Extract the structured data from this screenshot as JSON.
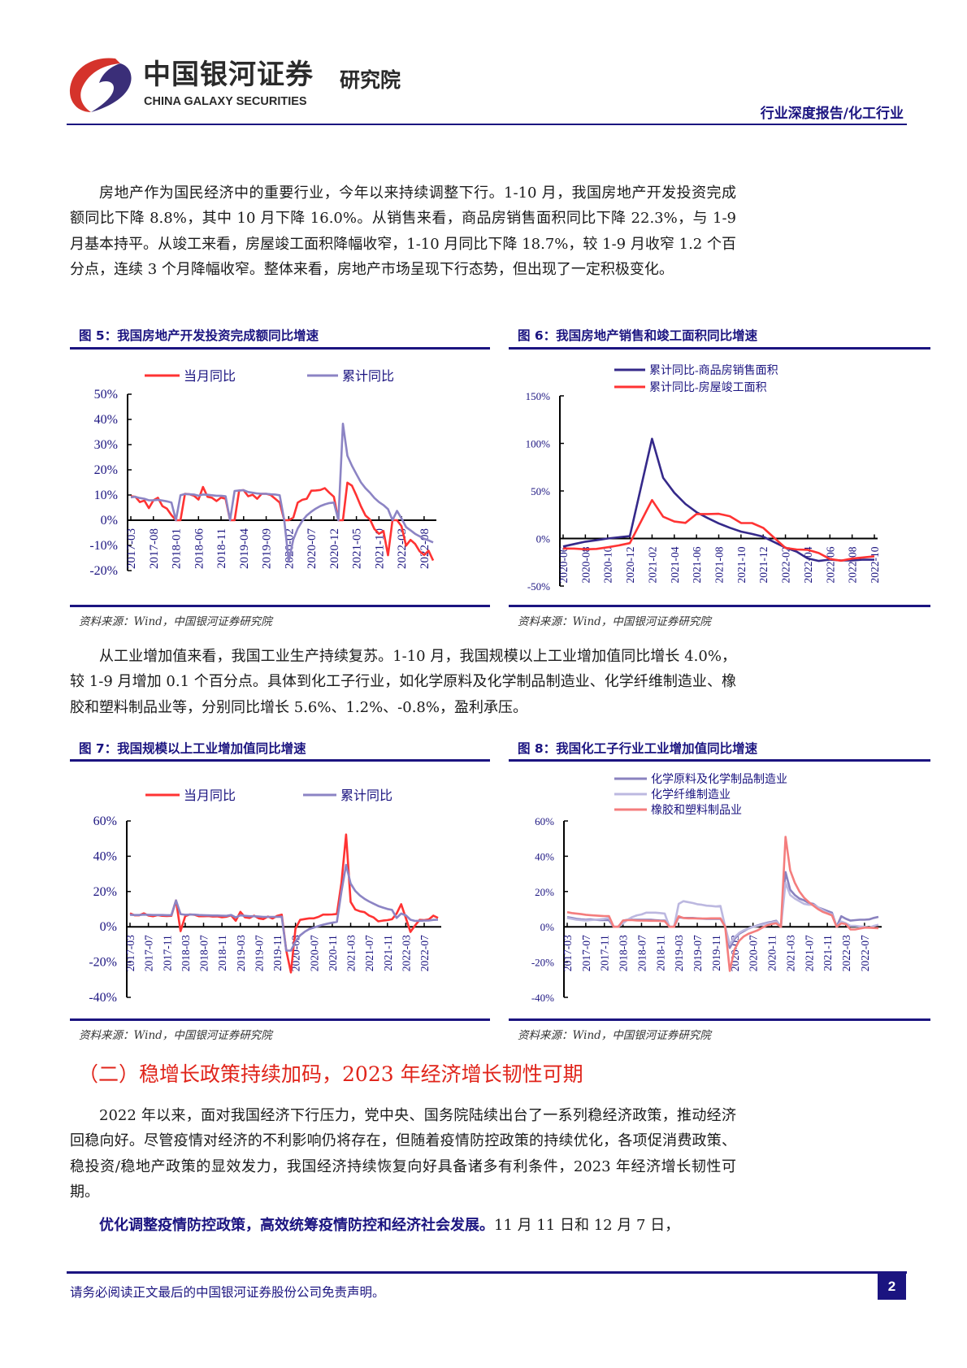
{
  "header": {
    "logo_cn": "中国银河证券",
    "logo_en": "CHINA GALAXY SECURITIES",
    "logo_sub": "研究院",
    "report_type": "行业深度报告/化工行业",
    "logo_colors": {
      "red": "#d5332b",
      "navy": "#3a2e78"
    }
  },
  "body": {
    "p1": "房地产作为国民经济中的重要行业，今年以来持续调整下行。1-10 月，我国房地产开发投资完成额同比下降 8.8%，其中 10 月下降 16.0%。从销售来看，商品房销售面积同比下降 22.3%，与 1-9 月基本持平。从竣工来看，房屋竣工面积降幅收窄，1-10 月同比下降 18.7%，较 1-9 月收窄 1.2 个百分点，连续 3 个月降幅收窄。整体来看，房地产市场呈现下行态势，但出现了一定积极变化。",
    "p2": "从工业增加值来看，我国工业生产持续复苏。1-10 月，我国规模以上工业增加值同比增长 4.0%，较 1-9 月增加 0.1 个百分点。具体到化工子行业，如化学原料及化学制品制造业、化学纤维制造业、橡胶和塑料制品业等，分别同比增长 5.6%、1.2%、-0.8%，盈利承压。",
    "section_title": "（二）稳增长政策持续加码，2023 年经济增长韧性可期",
    "p3": "2022 年以来，面对我国经济下行压力，党中央、国务院陆续出台了一系列稳经济政策，推动经济回稳向好。尽管疫情对经济的不利影响仍将存在，但随着疫情防控政策的持续优化，各项促消费政策、稳投资/稳地产政策的显效发力，我国经济持续恢复向好具备诸多有利条件，2023 年经济增长韧性可期。",
    "p4_bold": "优化调整疫情防控政策，高效统筹疫情防控和经济社会发展。",
    "p4_rest": "11 月 11 日和 12 月 7 日，"
  },
  "footer": {
    "disclaimer": "请务必阅读正文最后的中国银河证券股份公司免责声明。",
    "page": "2"
  },
  "chart_data": [
    {
      "id": "fig5",
      "type": "line",
      "title": "图 5：我国房地产开发投资完成额同比增速",
      "source": "资料来源：Wind，中国银河证券研究院",
      "x_start": "2017-03",
      "tick_labels": [
        "2017-03",
        "2017-08",
        "2018-01",
        "2018-06",
        "2018-11",
        "2019-04",
        "2019-09",
        "2020-02",
        "2020-07",
        "2020-12",
        "2021-05",
        "2021-10",
        "2022-03",
        "2022-08"
      ],
      "ylim": [
        -20,
        50
      ],
      "ystep": 10,
      "y_unit": "%",
      "y_tick_labels": [
        "-20%",
        "-10%",
        "0%",
        "10%",
        "20%",
        "30%",
        "40%",
        "50%"
      ],
      "legend": "top",
      "series": [
        {
          "name": "当月同比",
          "color": "#ff3333",
          "values": [
            9.5,
            9.3,
            7.2,
            7.8,
            4.8,
            7.9,
            8.9,
            5.6,
            4.6,
            2.0,
            0,
            0,
            10.5,
            10.3,
            9.7,
            8.2,
            13.2,
            9.3,
            8.9,
            7.6,
            9.0,
            8.5,
            0,
            0,
            11.8,
            11.9,
            9.5,
            10.1,
            8.5,
            10.5,
            10.5,
            10.0,
            8.5,
            7.0,
            0,
            0,
            1.0,
            7.0,
            8.1,
            8.5,
            11.7,
            11.8,
            12.0,
            12.7,
            10.9,
            9.3,
            0,
            0,
            14.9,
            13.7,
            9.8,
            5.5,
            1.9,
            0.3,
            -3.5,
            -5.4,
            -4.3,
            -13.9,
            0,
            0,
            -2.4,
            -10.1,
            -7.8,
            -9.4,
            -12.3,
            -13.8,
            -12.1,
            -16.0
          ]
        },
        {
          "name": "累计同比",
          "color": "#8c84c4",
          "values": [
            9.1,
            9.3,
            8.8,
            8.5,
            7.9,
            7.9,
            8.1,
            7.8,
            7.5,
            7.0,
            0,
            9.9,
            10.4,
            10.3,
            10.2,
            9.7,
            10.2,
            10.1,
            9.9,
            9.7,
            9.7,
            9.5,
            0,
            11.6,
            11.8,
            11.9,
            11.2,
            10.9,
            10.6,
            10.5,
            10.5,
            10.3,
            10.2,
            9.9,
            0,
            -16.3,
            -7.7,
            -3.3,
            -0.3,
            1.9,
            3.4,
            4.6,
            5.6,
            6.3,
            6.8,
            7.0,
            0,
            38.3,
            25.6,
            21.6,
            18.3,
            15.0,
            12.7,
            10.9,
            8.8,
            7.2,
            6.0,
            4.4,
            0,
            3.7,
            0.7,
            -2.7,
            -4.0,
            -5.4,
            -6.4,
            -7.4,
            -8.0,
            -8.8
          ]
        }
      ]
    },
    {
      "id": "fig6",
      "type": "line",
      "title": "图 6：我国房地产销售和竣工面积同比增速",
      "source": "资料来源：Wind，中国银河证券研究院",
      "x_start": "2020-06",
      "tick_labels": [
        "2020-06",
        "2020-08",
        "2020-10",
        "2020-12",
        "2021-02",
        "2021-04",
        "2021-06",
        "2021-08",
        "2021-10",
        "2021-12",
        "2022-02",
        "2022-04",
        "2022-06",
        "2022-08",
        "2022-10"
      ],
      "ylim": [
        -50,
        150
      ],
      "ystep": 50,
      "y_unit": "%",
      "y_tick_labels": [
        "-50%",
        "0%",
        "50%",
        "100%",
        "150%"
      ],
      "legend": "top",
      "series": [
        {
          "name": "累计同比-商品房销售面积",
          "color": "#35298a",
          "values": [
            -8.4,
            -5.8,
            -3.3,
            -1.8,
            0.0,
            1.3,
            2.6,
            null,
            104.9,
            63.8,
            48.1,
            36.3,
            27.7,
            21.5,
            15.9,
            11.3,
            7.3,
            4.8,
            1.9,
            null,
            -9.6,
            -13.8,
            -20.9,
            -23.6,
            -22.2,
            -23.1,
            -23.0,
            -22.2,
            -22.3
          ]
        },
        {
          "name": "累计同比-房屋竣工面积",
          "color": "#ff3333",
          "values": [
            -10.5,
            -10.6,
            -11.4,
            -10.9,
            -9.2,
            -7.3,
            -4.9,
            null,
            40.4,
            22.9,
            17.9,
            16.4,
            25.7,
            25.7,
            26.0,
            23.4,
            16.3,
            16.2,
            11.2,
            null,
            -9.9,
            -11.5,
            -11.9,
            -15.3,
            -21.5,
            -23.3,
            -21.1,
            -19.9,
            -18.7
          ]
        }
      ]
    },
    {
      "id": "fig7",
      "type": "line",
      "title": "图 7：我国规模以上工业增加值同比增速",
      "source": "资料来源：Wind，中国银河证券研究院",
      "x_start": "2017-03",
      "tick_labels": [
        "2017-03",
        "2017-07",
        "2017-11",
        "2018-03",
        "2018-07",
        "2018-11",
        "2019-03",
        "2019-07",
        "2019-11",
        "2020-03",
        "2020-07",
        "2020-11",
        "2021-03",
        "2021-07",
        "2021-11",
        "2022-03",
        "2022-07"
      ],
      "ylim": [
        -40,
        60
      ],
      "ystep": 20,
      "y_unit": "%",
      "y_tick_labels": [
        "-40%",
        "-20%",
        "0%",
        "20%",
        "40%",
        "60%"
      ],
      "legend": "top",
      "series": [
        {
          "name": "当月同比",
          "color": "#ff3333",
          "values": [
            7.6,
            6.5,
            6.5,
            7.6,
            6.4,
            6.0,
            6.6,
            6.2,
            6.1,
            6.2,
            15.0,
            -2.5,
            6.0,
            7.0,
            6.8,
            6.0,
            6.0,
            6.1,
            5.8,
            5.9,
            5.4,
            5.7,
            6.5,
            3.4,
            8.5,
            5.4,
            5.0,
            6.3,
            4.8,
            4.4,
            5.8,
            4.7,
            6.2,
            6.9,
            -13.5,
            -25.9,
            -1.1,
            3.9,
            4.4,
            4.8,
            4.8,
            5.6,
            6.9,
            6.9,
            7.0,
            7.3,
            25.0,
            52.3,
            14.1,
            9.8,
            8.8,
            8.3,
            6.4,
            5.3,
            3.1,
            3.5,
            3.8,
            4.3,
            7.5,
            12.8,
            5.0,
            -2.9,
            0.7,
            3.9,
            3.8,
            4.2,
            6.3,
            5.0
          ]
        },
        {
          "name": "累计同比",
          "color": "#8c84c4",
          "values": [
            6.8,
            6.7,
            6.7,
            6.9,
            6.8,
            6.7,
            6.7,
            6.7,
            6.6,
            6.6,
            15.0,
            7.2,
            6.8,
            6.9,
            6.9,
            6.7,
            6.6,
            6.5,
            6.4,
            6.4,
            6.3,
            6.2,
            6.7,
            5.3,
            6.5,
            6.2,
            6.0,
            6.0,
            5.8,
            5.6,
            5.6,
            5.6,
            5.6,
            5.7,
            -13.5,
            -13.5,
            -8.4,
            -4.9,
            -2.8,
            -1.3,
            -0.4,
            0.4,
            1.2,
            1.8,
            2.3,
            2.8,
            20.0,
            35.1,
            24.5,
            20.3,
            17.8,
            15.9,
            14.4,
            13.1,
            11.8,
            10.9,
            10.1,
            9.6,
            5.0,
            7.5,
            6.5,
            4.0,
            3.3,
            3.4,
            3.5,
            3.6,
            3.9,
            4.0
          ]
        }
      ]
    },
    {
      "id": "fig8",
      "type": "line",
      "title": "图 8：我国化工子行业工业增加值同比增速",
      "source": "资料来源：Wind，中国银河证券研究院",
      "x_start": "2017-03",
      "tick_labels": [
        "2017-03",
        "2017-07",
        "2017-11",
        "2018-03",
        "2018-07",
        "2018-11",
        "2019-03",
        "2019-07",
        "2019-11",
        "2020-03",
        "2020-07",
        "2020-11",
        "2021-03",
        "2021-07",
        "2021-11",
        "2022-03",
        "2022-07"
      ],
      "ylim": [
        -40,
        60
      ],
      "ystep": 20,
      "y_unit": "%",
      "y_tick_labels": [
        "-40%",
        "-20%",
        "0%",
        "20%",
        "40%",
        "60%"
      ],
      "legend": "top",
      "series": [
        {
          "name": "化学原料及化学制品制造业",
          "color": "#8a82bf",
          "values": [
            5.5,
            5.0,
            4.5,
            4.2,
            4.0,
            4.2,
            4.0,
            3.8,
            3.8,
            3.8,
            0,
            0,
            3.5,
            4.0,
            4.0,
            4.0,
            4.0,
            4.0,
            4.0,
            3.8,
            3.6,
            3.5,
            0,
            0,
            5.5,
            5.0,
            5.0,
            5.0,
            4.8,
            4.6,
            4.5,
            4.5,
            4.5,
            4.5,
            0,
            -12.0,
            -7.0,
            -4.0,
            -2.5,
            -1.0,
            0,
            0.8,
            1.6,
            2.3,
            2.8,
            3.4,
            0,
            31.0,
            21.0,
            18.0,
            16.0,
            15.0,
            13.5,
            13.0,
            11.0,
            10.0,
            9.0,
            8.0,
            0,
            6.0,
            4.5,
            3.5,
            3.8,
            4.0,
            4.0,
            4.2,
            5.0,
            5.6
          ]
        },
        {
          "name": "化学纤维制造业",
          "color": "#bcb8e0",
          "values": [
            5.0,
            4.5,
            4.0,
            3.8,
            3.6,
            3.8,
            4.0,
            4.2,
            4.5,
            5.0,
            0,
            0,
            2.0,
            4.0,
            5.5,
            6.5,
            7.0,
            8.0,
            8.0,
            8.0,
            7.8,
            7.5,
            0,
            0,
            13.0,
            14.5,
            14.0,
            13.5,
            12.8,
            12.5,
            12.0,
            11.8,
            11.5,
            11.8,
            0,
            -10.0,
            -6.0,
            -3.5,
            -2.0,
            -1.0,
            0,
            0.5,
            1.2,
            2.0,
            2.5,
            3.0,
            0,
            25.0,
            18.0,
            16.0,
            14.5,
            13.0,
            12.5,
            12.5,
            11.0,
            9.5,
            8.0,
            7.0,
            0,
            3.0,
            2.0,
            0.5,
            0.5,
            0.2,
            0,
            -0.5,
            0.5,
            1.2
          ]
        },
        {
          "name": "橡胶和塑料制品业",
          "color": "#f47d7d",
          "values": [
            8.3,
            7.8,
            7.5,
            7.2,
            6.8,
            6.6,
            6.4,
            6.2,
            6.1,
            6.1,
            0,
            0,
            3.5,
            3.8,
            3.8,
            3.6,
            3.5,
            3.5,
            3.4,
            3.4,
            3.3,
            3.2,
            0,
            0,
            6.0,
            5.0,
            4.8,
            4.8,
            4.7,
            4.7,
            4.7,
            4.8,
            4.8,
            4.8,
            0,
            -25.0,
            -13.0,
            -8.0,
            -5.5,
            -4.0,
            -3.0,
            -2.0,
            -0.5,
            0.8,
            1.5,
            2.0,
            0,
            51.0,
            32.0,
            25.0,
            20.0,
            16.5,
            14.0,
            12.0,
            10.0,
            8.5,
            7.5,
            6.5,
            0,
            2.0,
            1.5,
            -1.5,
            -1.5,
            -1.0,
            -0.5,
            -0.5,
            -0.7,
            -0.8
          ]
        }
      ]
    }
  ]
}
